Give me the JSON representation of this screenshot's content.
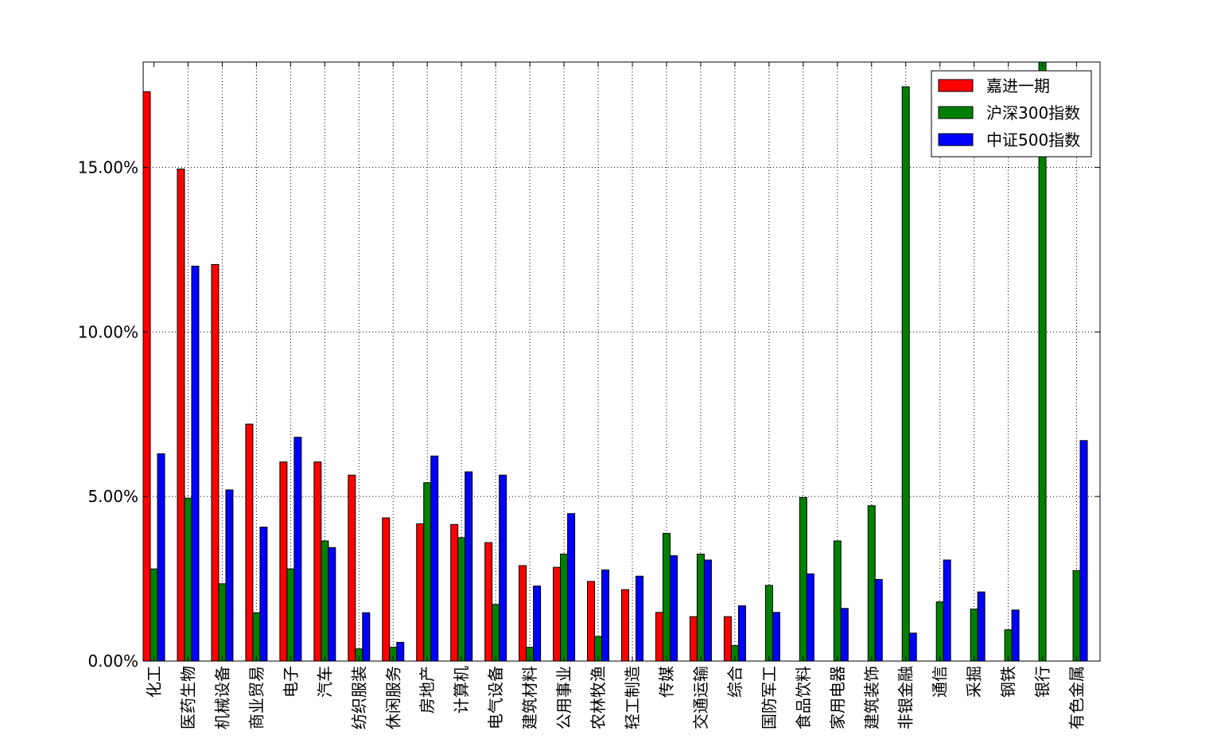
{
  "chart_data": {
    "type": "bar",
    "title": "",
    "xlabel": "",
    "ylabel": "",
    "ylim": [
      0,
      18.2
    ],
    "yticks": [
      0,
      5,
      10,
      15
    ],
    "ytick_labels": [
      "0.00%",
      "5.00%",
      "10.00%",
      "15.00%"
    ],
    "grid": true,
    "legend_position": "top-right",
    "categories": [
      "化工",
      "医药生物",
      "机械设备",
      "商业贸易",
      "电子",
      "汽车",
      "纺织服装",
      "休闲服务",
      "房地产",
      "计算机",
      "电气设备",
      "建筑材料",
      "公用事业",
      "农林牧渔",
      "轻工制造",
      "传媒",
      "交通运输",
      "综合",
      "国防军工",
      "食品饮料",
      "家用电器",
      "建筑装饰",
      "非银金融",
      "通信",
      "采掘",
      "钢铁",
      "银行",
      "有色金属"
    ],
    "series": [
      {
        "name": "嘉进一期",
        "color": "#ff0000",
        "values": [
          17.3,
          14.95,
          12.05,
          7.2,
          6.05,
          6.05,
          5.65,
          4.35,
          4.17,
          4.15,
          3.6,
          2.9,
          2.85,
          2.42,
          2.17,
          1.48,
          1.35,
          1.35,
          0,
          0,
          0,
          0,
          0,
          0,
          0,
          0,
          0,
          0
        ]
      },
      {
        "name": "沪深300指数",
        "color": "#008000",
        "values": [
          2.8,
          4.95,
          2.35,
          1.47,
          2.8,
          3.65,
          0.37,
          0.42,
          5.42,
          3.75,
          1.72,
          0.42,
          3.25,
          0.75,
          0,
          3.88,
          3.25,
          0.47,
          2.3,
          4.97,
          3.65,
          4.72,
          17.45,
          1.8,
          1.58,
          0.95,
          18.2,
          2.75
        ]
      },
      {
        "name": "中证500指数",
        "color": "#0000ff",
        "values": [
          6.3,
          12.0,
          5.2,
          4.07,
          6.8,
          3.45,
          1.47,
          0.57,
          6.23,
          5.75,
          5.65,
          2.28,
          4.48,
          2.77,
          2.58,
          3.2,
          3.07,
          1.68,
          1.48,
          2.65,
          1.6,
          2.48,
          0.85,
          3.07,
          2.1,
          1.55,
          0,
          6.7
        ]
      }
    ]
  }
}
